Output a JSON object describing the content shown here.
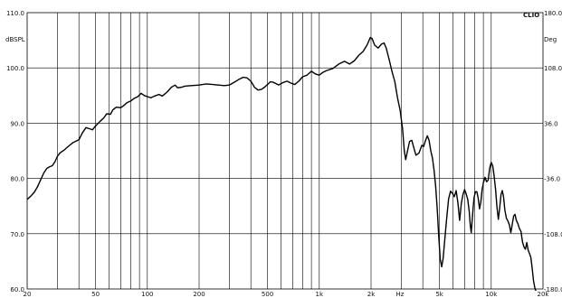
{
  "chart_data": {
    "type": "line",
    "brand_label": "CLIO",
    "left_unit_label": "dBSPL",
    "right_unit_label": "Deg",
    "x_unit_label": "Hz",
    "x_scale": "log",
    "xlim": [
      20,
      20000
    ],
    "ylim": [
      60,
      110
    ],
    "right_ylim": [
      -180,
      180
    ],
    "grid": true,
    "x_ticks": [
      {
        "value": 20,
        "label": "20"
      },
      {
        "value": 50,
        "label": "50"
      },
      {
        "value": 100,
        "label": "100"
      },
      {
        "value": 200,
        "label": "200"
      },
      {
        "value": 500,
        "label": "500"
      },
      {
        "value": 1000,
        "label": "1k"
      },
      {
        "value": 2000,
        "label": "2k"
      },
      {
        "value": 5000,
        "label": "5k"
      },
      {
        "value": 10000,
        "label": "10k"
      },
      {
        "value": 20000,
        "label": "20k"
      }
    ],
    "y_ticks": [
      {
        "value": 60,
        "label": "60.0"
      },
      {
        "value": 70,
        "label": "70.0"
      },
      {
        "value": 80,
        "label": "80.0"
      },
      {
        "value": 90,
        "label": "90.0"
      },
      {
        "value": 100,
        "label": "100.0"
      },
      {
        "value": 110,
        "label": "110.0"
      }
    ],
    "right_ticks": [
      {
        "value": -180,
        "label": "-180.0"
      },
      {
        "value": -108,
        "label": "-108.0"
      },
      {
        "value": -36,
        "label": "-36.0"
      },
      {
        "value": 36,
        "label": "36.0"
      },
      {
        "value": 108,
        "label": "108.0"
      },
      {
        "value": 180,
        "label": "180.0"
      }
    ],
    "series": [
      {
        "color": "#000000",
        "points": [
          [
            20,
            76.2
          ],
          [
            21,
            76.8
          ],
          [
            22,
            77.5
          ],
          [
            23,
            78.5
          ],
          [
            24,
            79.8
          ],
          [
            25,
            81.0
          ],
          [
            26,
            81.8
          ],
          [
            27,
            82.1
          ],
          [
            28,
            82.3
          ],
          [
            29,
            83.0
          ],
          [
            30,
            84.0
          ],
          [
            31,
            84.6
          ],
          [
            33,
            85.2
          ],
          [
            35,
            85.9
          ],
          [
            37,
            86.5
          ],
          [
            40,
            87.0
          ],
          [
            42,
            88.3
          ],
          [
            44,
            89.2
          ],
          [
            46,
            89.0
          ],
          [
            48,
            88.8
          ],
          [
            50,
            89.5
          ],
          [
            53,
            90.3
          ],
          [
            56,
            91.0
          ],
          [
            58,
            91.7
          ],
          [
            61,
            91.6
          ],
          [
            63,
            92.4
          ],
          [
            66,
            92.9
          ],
          [
            70,
            92.8
          ],
          [
            73,
            93.2
          ],
          [
            76,
            93.7
          ],
          [
            80,
            94.0
          ],
          [
            84,
            94.5
          ],
          [
            88,
            94.8
          ],
          [
            92,
            95.4
          ],
          [
            96,
            95.0
          ],
          [
            100,
            94.8
          ],
          [
            105,
            94.6
          ],
          [
            110,
            94.9
          ],
          [
            117,
            95.2
          ],
          [
            122,
            94.9
          ],
          [
            130,
            95.6
          ],
          [
            138,
            96.5
          ],
          [
            145,
            96.9
          ],
          [
            150,
            96.4
          ],
          [
            158,
            96.5
          ],
          [
            165,
            96.7
          ],
          [
            180,
            96.8
          ],
          [
            200,
            96.9
          ],
          [
            220,
            97.1
          ],
          [
            240,
            97.0
          ],
          [
            260,
            96.9
          ],
          [
            280,
            96.8
          ],
          [
            300,
            96.9
          ],
          [
            320,
            97.4
          ],
          [
            340,
            97.9
          ],
          [
            360,
            98.3
          ],
          [
            380,
            98.2
          ],
          [
            400,
            97.6
          ],
          [
            420,
            96.5
          ],
          [
            440,
            96.0
          ],
          [
            460,
            96.1
          ],
          [
            480,
            96.5
          ],
          [
            500,
            97.0
          ],
          [
            520,
            97.5
          ],
          [
            540,
            97.4
          ],
          [
            580,
            96.9
          ],
          [
            610,
            97.3
          ],
          [
            650,
            97.6
          ],
          [
            690,
            97.2
          ],
          [
            720,
            97.0
          ],
          [
            760,
            97.6
          ],
          [
            800,
            98.4
          ],
          [
            850,
            98.7
          ],
          [
            900,
            99.4
          ],
          [
            950,
            98.9
          ],
          [
            1000,
            98.7
          ],
          [
            1050,
            99.2
          ],
          [
            1100,
            99.5
          ],
          [
            1200,
            99.9
          ],
          [
            1300,
            100.7
          ],
          [
            1400,
            101.2
          ],
          [
            1500,
            100.7
          ],
          [
            1600,
            101.3
          ],
          [
            1700,
            102.3
          ],
          [
            1800,
            103.0
          ],
          [
            1900,
            104.2
          ],
          [
            1980,
            105.5
          ],
          [
            2030,
            105.3
          ],
          [
            2100,
            104.1
          ],
          [
            2200,
            103.6
          ],
          [
            2300,
            104.3
          ],
          [
            2380,
            104.5
          ],
          [
            2450,
            103.6
          ],
          [
            2550,
            101.5
          ],
          [
            2650,
            99.3
          ],
          [
            2750,
            97.5
          ],
          [
            2850,
            94.6
          ],
          [
            2950,
            92.4
          ],
          [
            3050,
            89.0
          ],
          [
            3120,
            85.1
          ],
          [
            3180,
            83.4
          ],
          [
            3250,
            84.8
          ],
          [
            3350,
            86.7
          ],
          [
            3450,
            86.9
          ],
          [
            3550,
            85.5
          ],
          [
            3650,
            84.2
          ],
          [
            3800,
            84.6
          ],
          [
            3950,
            86.0
          ],
          [
            4050,
            85.8
          ],
          [
            4150,
            86.9
          ],
          [
            4250,
            87.7
          ],
          [
            4350,
            86.9
          ],
          [
            4450,
            85.0
          ],
          [
            4550,
            83.7
          ],
          [
            4650,
            81.5
          ],
          [
            4750,
            78.6
          ],
          [
            4850,
            74.5
          ],
          [
            4950,
            69.6
          ],
          [
            5050,
            65.4
          ],
          [
            5150,
            64.0
          ],
          [
            5250,
            65.5
          ],
          [
            5350,
            68.4
          ],
          [
            5500,
            72.6
          ],
          [
            5650,
            76.3
          ],
          [
            5800,
            77.7
          ],
          [
            5950,
            77.3
          ],
          [
            6100,
            76.7
          ],
          [
            6250,
            77.8
          ],
          [
            6400,
            75.6
          ],
          [
            6550,
            72.4
          ],
          [
            6700,
            75.5
          ],
          [
            6850,
            77.1
          ],
          [
            7000,
            78.0
          ],
          [
            7150,
            77.2
          ],
          [
            7300,
            76.2
          ],
          [
            7450,
            74.0
          ],
          [
            7550,
            71.6
          ],
          [
            7650,
            70.2
          ],
          [
            7750,
            72.5
          ],
          [
            7850,
            74.7
          ],
          [
            7950,
            76.6
          ],
          [
            8100,
            77.6
          ],
          [
            8250,
            77.6
          ],
          [
            8400,
            76.4
          ],
          [
            8550,
            74.5
          ],
          [
            8700,
            75.7
          ],
          [
            8850,
            78.0
          ],
          [
            9000,
            79.2
          ],
          [
            9200,
            80.2
          ],
          [
            9400,
            79.4
          ],
          [
            9600,
            79.7
          ],
          [
            9800,
            81.9
          ],
          [
            10000,
            82.9
          ],
          [
            10200,
            82.3
          ],
          [
            10400,
            80.4
          ],
          [
            10600,
            78.0
          ],
          [
            10800,
            74.8
          ],
          [
            11000,
            72.6
          ],
          [
            11200,
            74.7
          ],
          [
            11400,
            77.1
          ],
          [
            11600,
            77.8
          ],
          [
            11800,
            76.6
          ],
          [
            12000,
            74.3
          ],
          [
            12250,
            72.8
          ],
          [
            12500,
            72.3
          ],
          [
            12750,
            71.6
          ],
          [
            13000,
            70.2
          ],
          [
            13250,
            71.7
          ],
          [
            13500,
            73.2
          ],
          [
            13750,
            73.5
          ],
          [
            14000,
            72.4
          ],
          [
            14300,
            71.8
          ],
          [
            14600,
            70.9
          ],
          [
            14900,
            70.4
          ],
          [
            15200,
            68.5
          ],
          [
            15500,
            67.6
          ],
          [
            15800,
            67.2
          ],
          [
            16100,
            68.4
          ],
          [
            16400,
            67.0
          ],
          [
            16700,
            66.4
          ],
          [
            17000,
            65.7
          ],
          [
            17300,
            63.8
          ],
          [
            17600,
            61.6
          ],
          [
            17900,
            60.3
          ],
          [
            18200,
            59.6
          ]
        ]
      }
    ]
  }
}
